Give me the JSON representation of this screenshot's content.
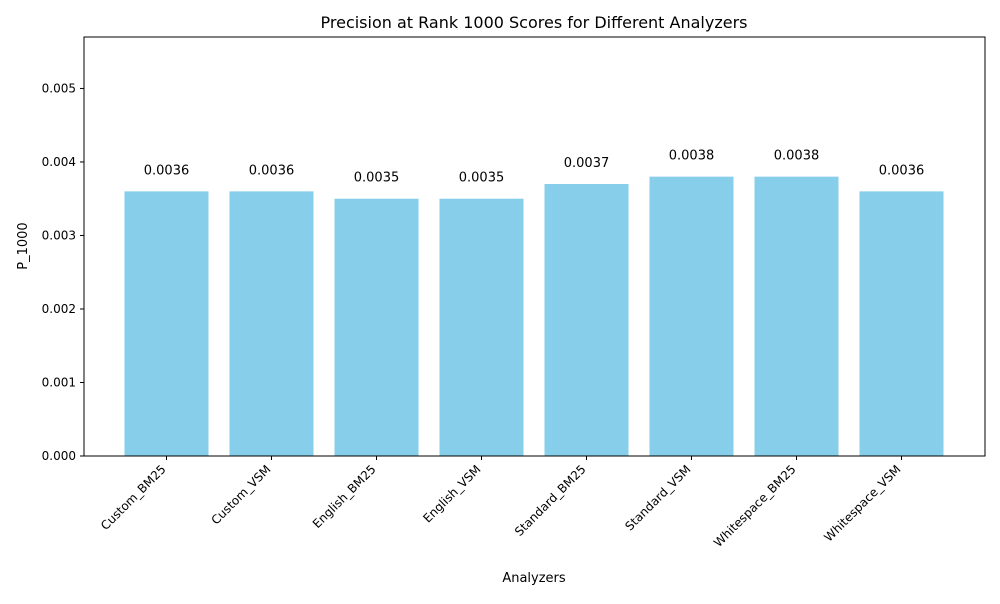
{
  "chart_data": {
    "type": "bar",
    "title": "Precision at Rank 1000 Scores for Different Analyzers",
    "xlabel": "Analyzers",
    "ylabel": "P_1000",
    "categories": [
      "Custom_BM25",
      "Custom_VSM",
      "English_BM25",
      "English_VSM",
      "Standard_BM25",
      "Standard_VSM",
      "Whitespace_BM25",
      "Whitespace_VSM"
    ],
    "values": [
      0.0036,
      0.0036,
      0.0035,
      0.0035,
      0.0037,
      0.0038,
      0.0038,
      0.0036
    ],
    "value_labels": [
      "0.0036",
      "0.0036",
      "0.0035",
      "0.0035",
      "0.0037",
      "0.0038",
      "0.0038",
      "0.0036"
    ],
    "ylim": [
      0,
      0.0057
    ],
    "yticks": [
      0,
      0.001,
      0.002,
      0.003,
      0.004,
      0.005
    ],
    "ytick_labels": [
      "0.000",
      "0.001",
      "0.002",
      "0.003",
      "0.004",
      "0.005"
    ],
    "grid": false,
    "legend": "none",
    "bar_color": "#87ceeb"
  }
}
